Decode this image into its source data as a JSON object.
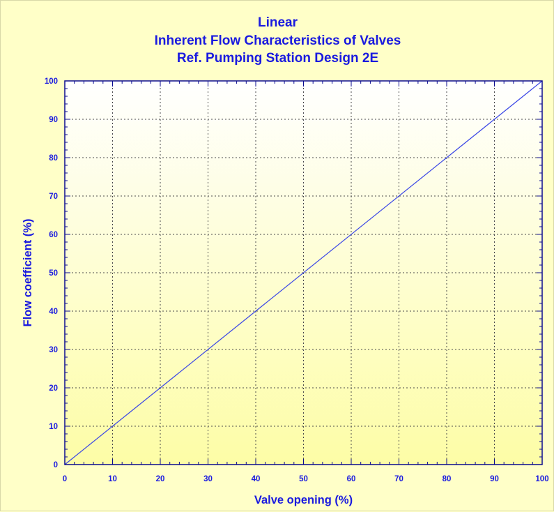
{
  "chart_data": {
    "type": "line",
    "title": [
      "Linear",
      "Inherent Flow Characteristics of Valves",
      "Ref. Pumping Station Design 2E"
    ],
    "xlabel": "Valve opening (%)",
    "ylabel": "Flow coefficient (%)",
    "xlim": [
      0,
      100
    ],
    "ylim": [
      0,
      100
    ],
    "xticks": [
      0,
      10,
      20,
      30,
      40,
      50,
      60,
      70,
      80,
      90,
      100
    ],
    "yticks": [
      0,
      10,
      20,
      30,
      40,
      50,
      60,
      70,
      80,
      90,
      100
    ],
    "grid": true,
    "series": [
      {
        "x": [
          0,
          100
        ],
        "y": [
          0,
          100
        ],
        "color": "#3a46e6"
      }
    ]
  },
  "colors": {
    "text": "#1a1adf",
    "axis": "#0b0b8f",
    "grid": "#4a4a4a",
    "background_bottom": "#fdfda6",
    "background_top": "#ffffff"
  }
}
